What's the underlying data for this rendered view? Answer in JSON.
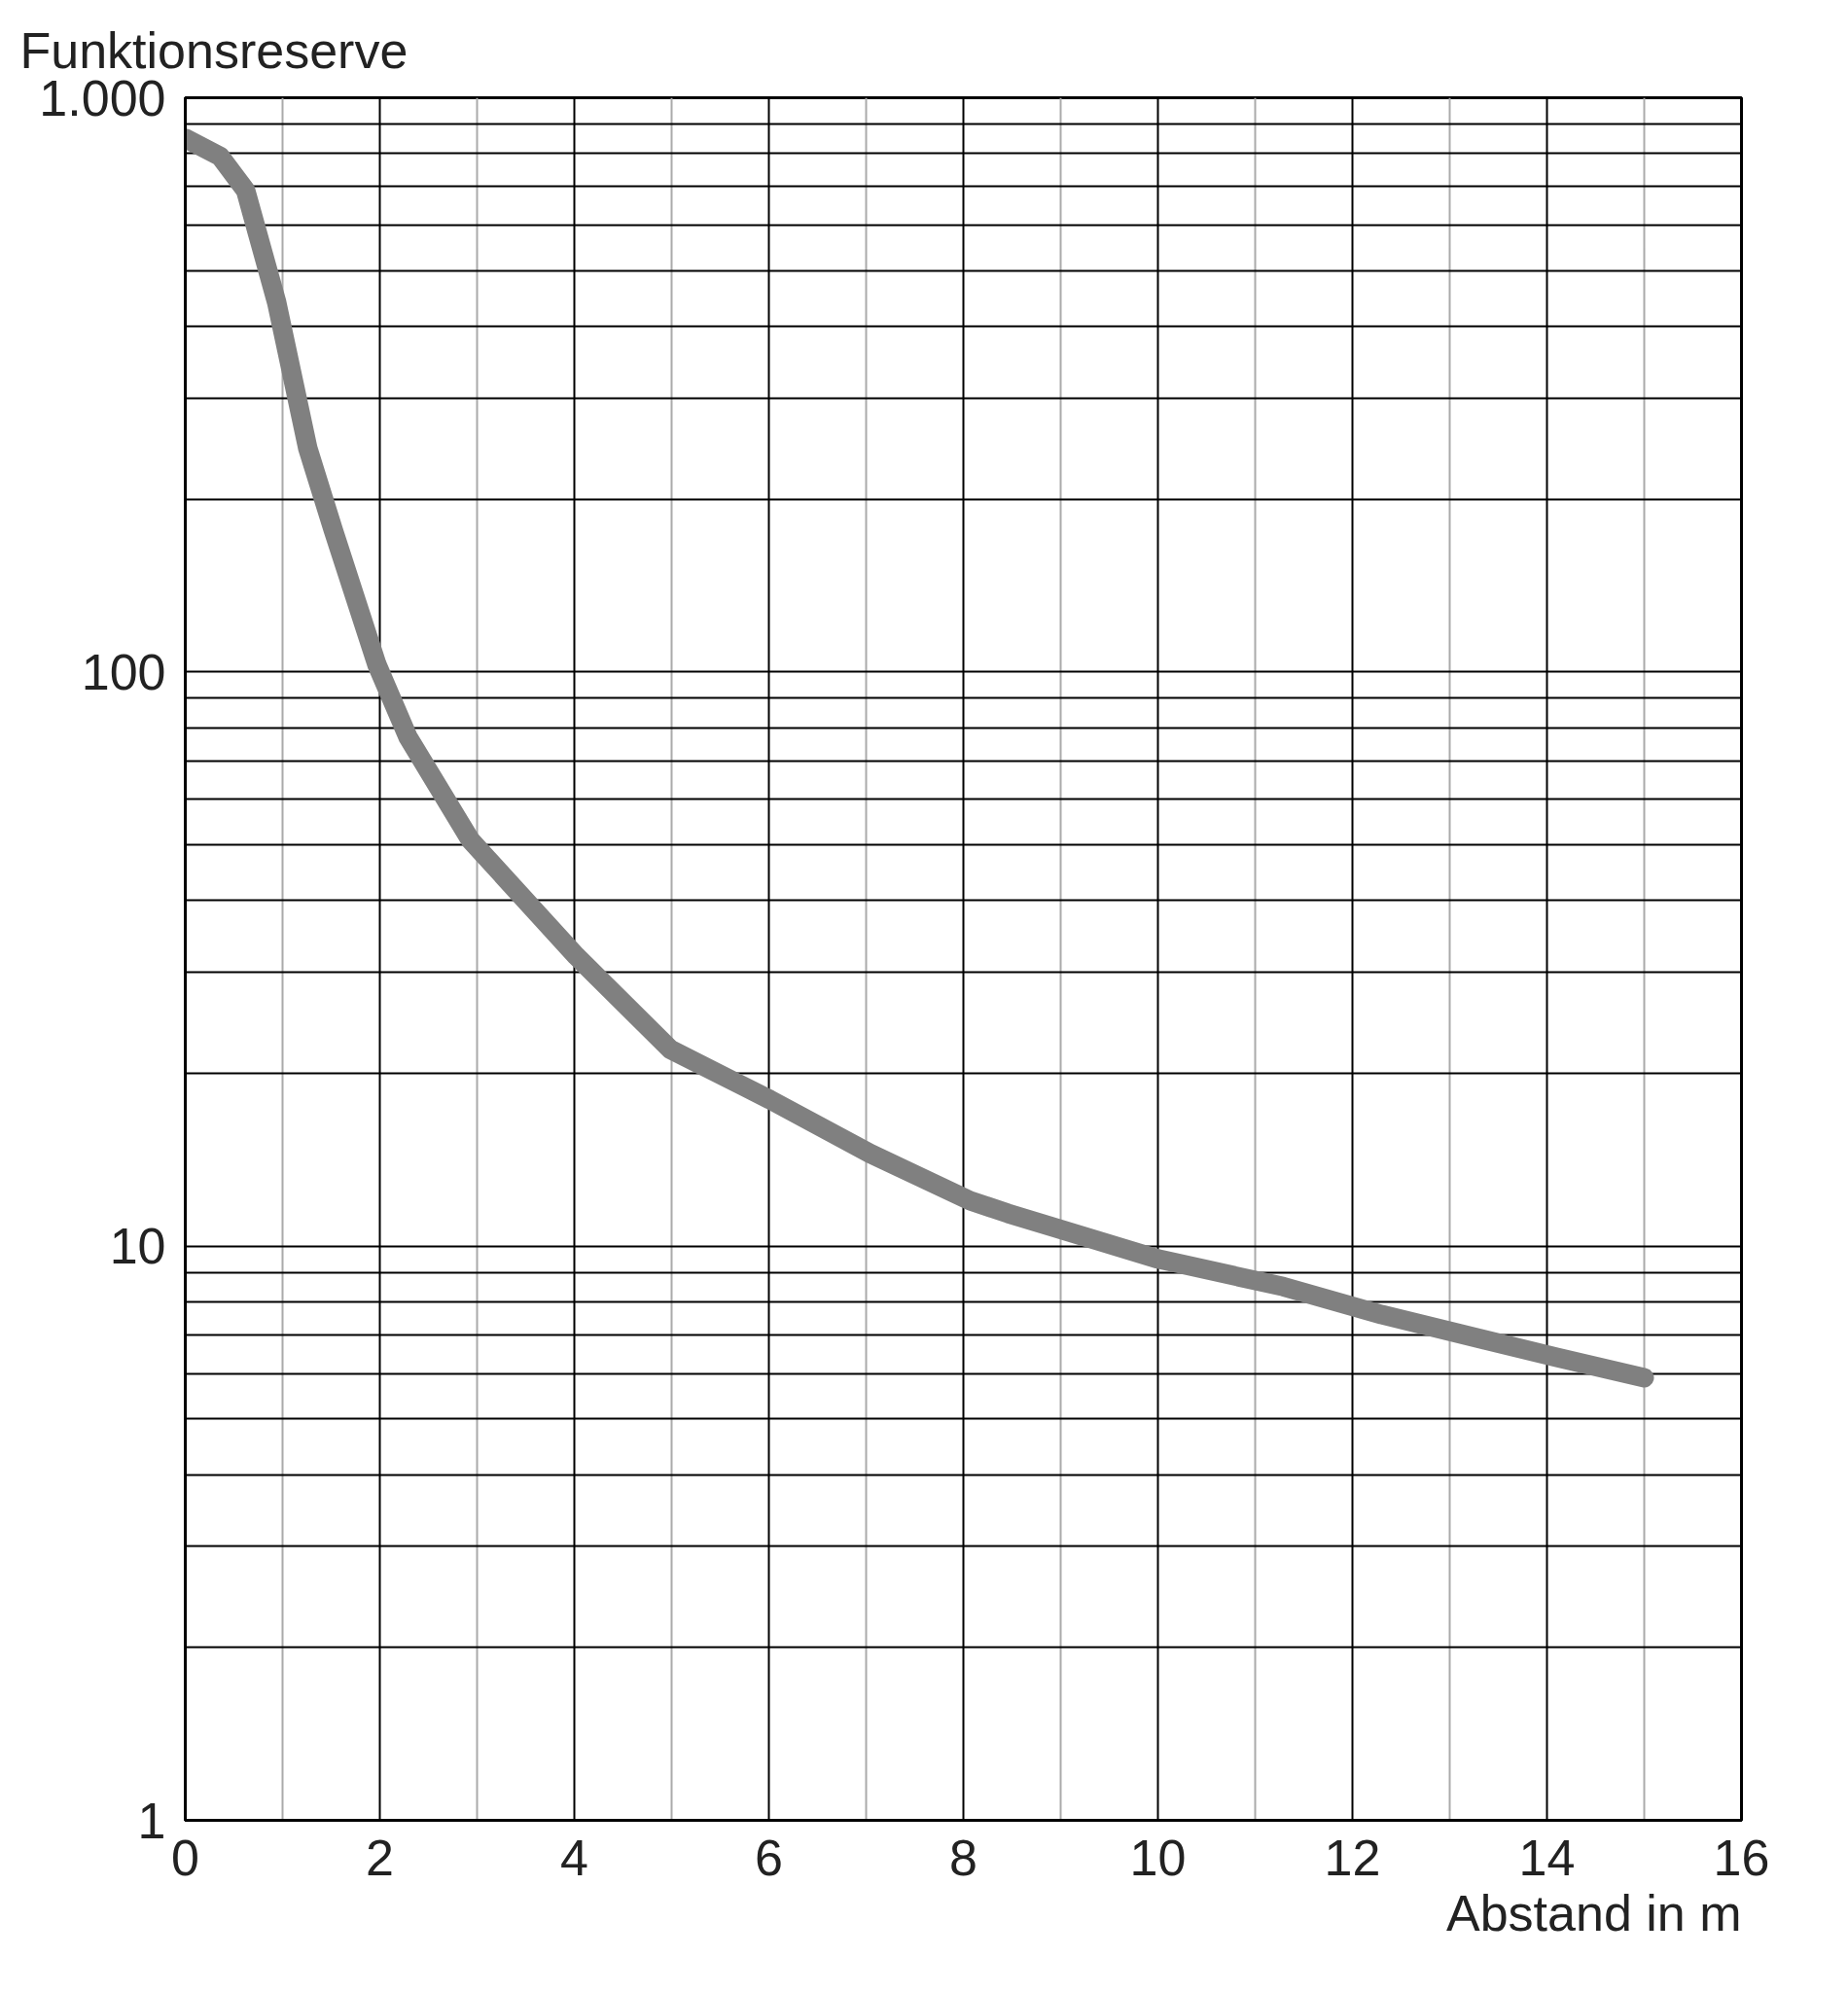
{
  "chart_data": {
    "type": "line",
    "ylabel": "Funktionsreserve",
    "xlabel": "Abstand in m",
    "log": "y",
    "grid": true,
    "line_style": "solid",
    "xlim": [
      0,
      16
    ],
    "xticks": [
      0,
      2,
      4,
      6,
      8,
      10,
      12,
      14,
      16
    ],
    "ylim": [
      1,
      1000
    ],
    "yticks": [
      1,
      10,
      100,
      {
        "value": 1000,
        "label": "1.000"
      }
    ],
    "series": [
      {
        "color": "#808080",
        "x": [
          0,
          0.36,
          0.62,
          0.94,
          1.26,
          1.52,
          1.97,
          2.29,
          2.93,
          4.02,
          4.99,
          6.01,
          7.04,
          8.07,
          8.46,
          10.0,
          11.29,
          12.3,
          14.1,
          15.0
        ],
        "values": [
          850,
          790,
          690,
          440,
          245,
          177,
          103,
          77,
          51,
          32,
          22,
          18,
          14.5,
          12,
          11.4,
          9.5,
          8.5,
          7.6,
          6.4,
          5.9
        ]
      }
    ]
  }
}
